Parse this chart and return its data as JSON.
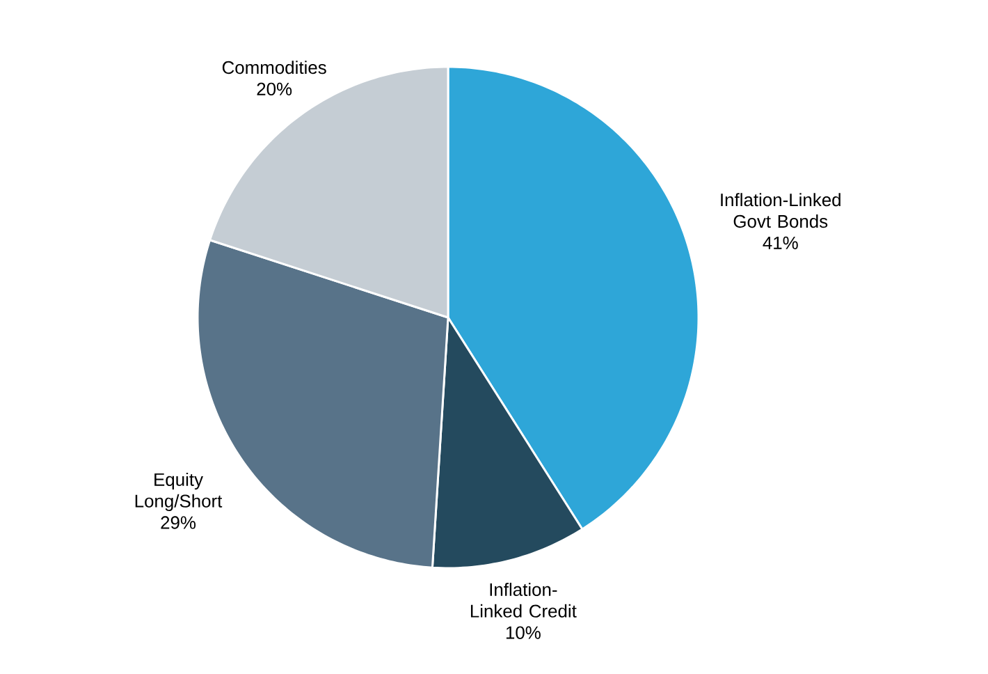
{
  "chart_data": {
    "type": "pie",
    "categories": [
      "Inflation-Linked Govt Bonds",
      "Inflation-Linked Credit",
      "Equity Long/Short",
      "Commodities"
    ],
    "values": [
      41,
      10,
      29,
      20
    ],
    "value_labels": [
      "41%",
      "10%",
      "29%",
      "20%"
    ],
    "colors": [
      "#2ea6d8",
      "#244a5e",
      "#587389",
      "#c5cdd4"
    ]
  }
}
